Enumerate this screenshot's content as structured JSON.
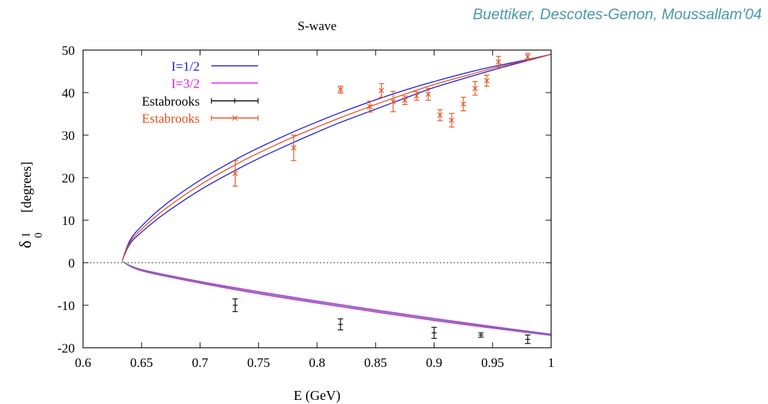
{
  "header": {
    "credit": "Buettiker, Descotes-Genon, Moussallam'04"
  },
  "colors": {
    "i_half_band": "#1a1adf",
    "i_half_central": "#e8501a",
    "i_three_half": "#e31ce3",
    "i_three_half_inner": "#2aa57a",
    "estabrooks_black": "#000000",
    "estabrooks_orange": "#e8501a",
    "credit_text": "#4a9aa6",
    "zero_line": "#555555"
  },
  "chart_data": {
    "type": "line",
    "title": "S-wave",
    "xlabel": "E (GeV)",
    "ylabel": {
      "delta": "δ",
      "superscript": "I",
      "subscript": "0",
      "unit": "[degrees]"
    },
    "xlim": [
      0.6,
      1.0
    ],
    "ylim": [
      -20,
      50
    ],
    "x_ticks": [
      0.6,
      0.65,
      0.7,
      0.75,
      0.8,
      0.85,
      0.9,
      0.95,
      1.0
    ],
    "x_tick_labels": [
      "0.6",
      "0.65",
      "0.7",
      "0.75",
      "0.8",
      "0.85",
      "0.9",
      "0.95",
      "1"
    ],
    "y_ticks": [
      -20,
      -10,
      0,
      10,
      20,
      30,
      40,
      50
    ],
    "y_tick_labels": [
      "-20",
      "-10",
      "0",
      "10",
      "20",
      "30",
      "40",
      "50"
    ],
    "threshold": 0.6335,
    "legend": {
      "position": "top-left",
      "entries": [
        {
          "label": "I=1/2",
          "color": "#1a1adf",
          "style": "line"
        },
        {
          "label": "I=3/2",
          "color": "#e31ce3",
          "style": "line"
        },
        {
          "label": "Estabrooks",
          "color": "#000000",
          "style": "errorbar-plus"
        },
        {
          "label": "Estabrooks",
          "color": "#e8501a",
          "style": "errorbar-cross"
        }
      ]
    },
    "curves": {
      "i_half_upper": {
        "x": [
          0.6335,
          0.64,
          0.65,
          0.67,
          0.7,
          0.73,
          0.75,
          0.78,
          0.8,
          0.82,
          0.85,
          0.88,
          0.9,
          0.93,
          0.95,
          0.97,
          1.0
        ],
        "y": [
          0.5,
          5.2,
          8.6,
          13.6,
          19.4,
          24.2,
          27.0,
          30.8,
          33.1,
          35.3,
          38.3,
          41.0,
          42.6,
          44.8,
          46.1,
          47.2,
          49.0
        ]
      },
      "i_half_central": {
        "x": [
          0.6335,
          0.64,
          0.65,
          0.67,
          0.7,
          0.73,
          0.75,
          0.78,
          0.8,
          0.82,
          0.85,
          0.88,
          0.9,
          0.93,
          0.95,
          0.97,
          1.0
        ],
        "y": [
          0.5,
          4.8,
          7.9,
          12.6,
          18.3,
          23.0,
          25.8,
          29.6,
          31.9,
          34.1,
          37.2,
          40.1,
          41.9,
          44.2,
          45.7,
          47.0,
          49.0
        ]
      },
      "i_half_lower": {
        "x": [
          0.6335,
          0.64,
          0.65,
          0.67,
          0.7,
          0.73,
          0.75,
          0.78,
          0.8,
          0.82,
          0.85,
          0.88,
          0.9,
          0.93,
          0.95,
          0.97,
          1.0
        ],
        "y": [
          0.5,
          4.4,
          7.2,
          11.6,
          17.1,
          21.7,
          24.5,
          28.3,
          30.7,
          33.0,
          36.1,
          39.2,
          41.2,
          43.7,
          45.3,
          46.8,
          49.0
        ]
      },
      "i_three_half_upper": {
        "x": [
          0.6335,
          0.65,
          0.7,
          0.75,
          0.8,
          0.85,
          0.9,
          0.95,
          1.0
        ],
        "y": [
          0.3,
          -1.6,
          -4.4,
          -6.8,
          -9.0,
          -11.1,
          -13.1,
          -15.0,
          -16.8
        ]
      },
      "i_three_half_central": {
        "x": [
          0.6335,
          0.65,
          0.7,
          0.75,
          0.8,
          0.85,
          0.9,
          0.95,
          1.0
        ],
        "y": [
          0.3,
          -1.75,
          -4.6,
          -7.05,
          -9.25,
          -11.35,
          -13.35,
          -15.2,
          -16.95
        ]
      },
      "i_three_half_lower": {
        "x": [
          0.6335,
          0.65,
          0.7,
          0.75,
          0.8,
          0.85,
          0.9,
          0.95,
          1.0
        ],
        "y": [
          0.3,
          -1.9,
          -4.8,
          -7.3,
          -9.5,
          -11.6,
          -13.6,
          -15.4,
          -17.1
        ]
      }
    },
    "estabrooks_black": [
      {
        "x": 0.73,
        "y": -10.0,
        "err": 1.5
      },
      {
        "x": 0.82,
        "y": -14.5,
        "err": 1.3
      },
      {
        "x": 0.9,
        "y": -16.5,
        "err": 1.3
      },
      {
        "x": 0.94,
        "y": -17.0,
        "err": 0.5
      },
      {
        "x": 0.98,
        "y": -18.0,
        "err": 1.0
      }
    ],
    "estabrooks_orange": [
      {
        "x": 0.73,
        "y": 21.0,
        "err": 3.0
      },
      {
        "x": 0.78,
        "y": 27.0,
        "err": 3.0
      },
      {
        "x": 0.82,
        "y": 40.7,
        "err": 0.8
      },
      {
        "x": 0.845,
        "y": 36.7,
        "err": 1.3
      },
      {
        "x": 0.855,
        "y": 40.5,
        "err": 1.6
      },
      {
        "x": 0.865,
        "y": 37.9,
        "err": 2.4
      },
      {
        "x": 0.875,
        "y": 38.2,
        "err": 1.0
      },
      {
        "x": 0.885,
        "y": 39.2,
        "err": 1.0
      },
      {
        "x": 0.895,
        "y": 39.6,
        "err": 1.4
      },
      {
        "x": 0.905,
        "y": 34.7,
        "err": 1.3
      },
      {
        "x": 0.915,
        "y": 33.5,
        "err": 1.6
      },
      {
        "x": 0.925,
        "y": 37.3,
        "err": 1.6
      },
      {
        "x": 0.935,
        "y": 41.0,
        "err": 1.6
      },
      {
        "x": 0.945,
        "y": 42.8,
        "err": 1.3
      },
      {
        "x": 0.955,
        "y": 47.2,
        "err": 1.3
      },
      {
        "x": 0.98,
        "y": 48.4,
        "err": 0.8
      }
    ]
  }
}
